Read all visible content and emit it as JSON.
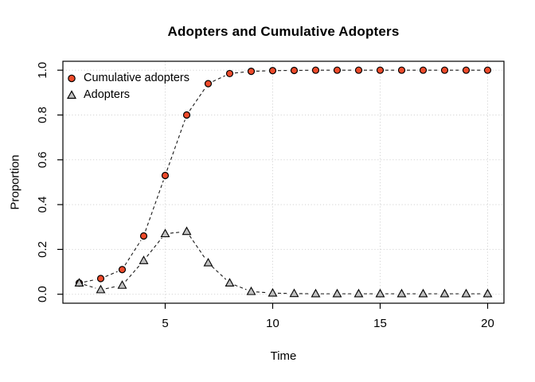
{
  "chart_data": {
    "type": "line",
    "title": "Adopters and Cumulative Adopters",
    "xlabel": "Time",
    "ylabel": "Proportion",
    "x": [
      1,
      2,
      3,
      4,
      5,
      6,
      7,
      8,
      9,
      10,
      11,
      12,
      13,
      14,
      15,
      16,
      17,
      18,
      19,
      20
    ],
    "series": [
      {
        "name": "Cumulative adopters",
        "marker": "circle",
        "marker_fill": "#EE4B2B",
        "marker_stroke": "#000000",
        "line_color": "#1a1a1a",
        "line_style": "dashed",
        "values": [
          0.05,
          0.07,
          0.11,
          0.26,
          0.53,
          0.8,
          0.94,
          0.985,
          0.995,
          0.998,
          0.999,
          1.0,
          1.0,
          1.0,
          1.0,
          1.0,
          1.0,
          1.0,
          1.0,
          1.0
        ]
      },
      {
        "name": "Adopters",
        "marker": "triangle-up",
        "marker_fill": "#C0C0C0",
        "marker_stroke": "#000000",
        "line_color": "#1a1a1a",
        "line_style": "dashed",
        "values": [
          0.05,
          0.02,
          0.04,
          0.15,
          0.27,
          0.28,
          0.14,
          0.05,
          0.012,
          0.005,
          0.003,
          0.002,
          0.002,
          0.002,
          0.002,
          0.002,
          0.002,
          0.002,
          0.002,
          0.002
        ]
      }
    ],
    "x_ticks": [
      5,
      10,
      15,
      20
    ],
    "y_ticks": [
      "0.0",
      "0.2",
      "0.4",
      "0.6",
      "0.8",
      "1.0"
    ],
    "y_tick_values": [
      0,
      0.2,
      0.4,
      0.6,
      0.8,
      1.0
    ],
    "xlim": [
      1,
      20
    ],
    "ylim": [
      0,
      1
    ],
    "grid": true,
    "grid_color": "#D4D4D4",
    "axis_color": "#000000",
    "background": "#FFFFFF",
    "legend_position": "top-left"
  }
}
